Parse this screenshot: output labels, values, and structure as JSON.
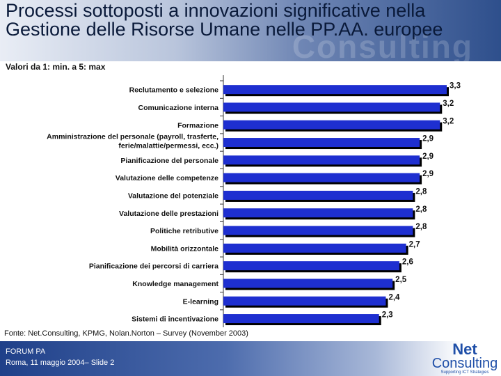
{
  "header": {
    "title": "Processi sottoposti a innovazioni significative nella Gestione delle Risorse Umane nelle PP.AA. europee",
    "watermark": "Consulting"
  },
  "subtitle": "Valori da 1: min. a 5: max",
  "source": "Fonte: Net.Consulting, KPMG, Nolan.Norton – Survey (November 2003)",
  "footer": {
    "event": "FORUM PA",
    "date": "Roma, 11 maggio 2004– Slide 2"
  },
  "logo": {
    "line1": "Net",
    "line2": "Consulting",
    "tagline": "Supporting ICT Strategies"
  },
  "colors": {
    "bar_fill": "#1e2fd0",
    "bar_shadow": "#000000",
    "header_dark": "#2e4f8c",
    "footer_dark": "#1f4089"
  },
  "chart_data": {
    "type": "bar",
    "orientation": "horizontal",
    "categories": [
      "Reclutamento e selezione",
      "Comunicazione interna",
      "Formazione",
      "Amministrazione del personale (payroll, trasferte, ferie/malattie/permessi, ecc.)",
      "Pianificazione del personale",
      "Valutazione delle competenze",
      "Valutazione del potenziale",
      "Valutazione delle prestazioni",
      "Politiche retributive",
      "Mobilità orizzontale",
      "Pianificazione dei percorsi di carriera",
      "Knowledge management",
      "E-learning",
      "Sistemi di incentivazione"
    ],
    "category_lines": [
      [
        "Reclutamento e selezione"
      ],
      [
        "Comunicazione interna"
      ],
      [
        "Formazione"
      ],
      [
        "Amministrazione del personale (payroll, trasferte,",
        "ferie/malattie/permessi, ecc.)"
      ],
      [
        "Pianificazione del personale"
      ],
      [
        "Valutazione delle competenze"
      ],
      [
        "Valutazione del potenziale"
      ],
      [
        "Valutazione delle prestazioni"
      ],
      [
        "Politiche retributive"
      ],
      [
        "Mobilità orizzontale"
      ],
      [
        "Pianificazione dei percorsi di carriera"
      ],
      [
        "Knowledge management"
      ],
      [
        "E-learning"
      ],
      [
        "Sistemi di incentivazione"
      ]
    ],
    "values": [
      3.3,
      3.2,
      3.2,
      2.9,
      2.9,
      2.9,
      2.8,
      2.8,
      2.8,
      2.7,
      2.6,
      2.5,
      2.4,
      2.3
    ],
    "value_labels": [
      "3,3",
      "3,2",
      "3,2",
      "2,9",
      "2,9",
      "2,9",
      "2,8",
      "2,8",
      "2,8",
      "2,7",
      "2,6",
      "2,5",
      "2,4",
      "2,3"
    ],
    "xlim": [
      0,
      3.3
    ],
    "grid": false,
    "legend": "none"
  }
}
